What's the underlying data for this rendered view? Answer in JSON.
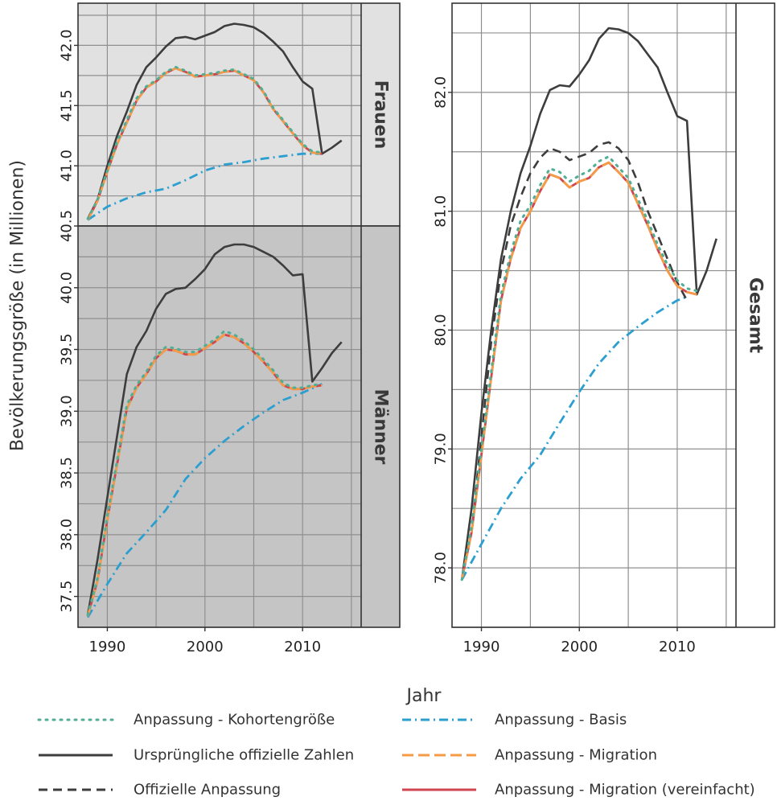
{
  "chart_data": {
    "type": "line",
    "xlabel": "Jahr",
    "ylabel": "Bevölkerungsgröße (in Millionen)",
    "xlim": [
      1987,
      2016
    ],
    "xticks": [
      "1990",
      "2000",
      "2010"
    ],
    "series_styles": [
      {
        "key": "kohort",
        "name": "Anpassung - Kohortengröße",
        "color": "#4fae93",
        "dash": "2 7"
      },
      {
        "key": "orig",
        "name": "Ursprüngliche offizielle Zahlen",
        "color": "#3d3d3d",
        "dash": ""
      },
      {
        "key": "offanp",
        "name": "Offizielle Anpassung",
        "color": "#3d3d3d",
        "dash": "11 7"
      },
      {
        "key": "basis",
        "name": "Anpassung - Basis",
        "color": "#2b9fd0",
        "dash": "11 5 2 5"
      },
      {
        "key": "migr",
        "name": "Anpassung - Migration",
        "color": "#f59b47",
        "dash": "14 6"
      },
      {
        "key": "migrv",
        "name": "Anpassung - Migration (vereinfacht)",
        "color": "#cf4550",
        "dash": ""
      }
    ],
    "legend": [
      [
        "Anpassung - Kohortengröße",
        "Anpassung - Basis"
      ],
      [
        "Ursprüngliche offizielle Zahlen",
        "Anpassung - Migration"
      ],
      [
        "Offizielle Anpassung",
        "Anpassung - Migration (vereinfacht)"
      ]
    ],
    "panels": [
      {
        "strip": "Frauen",
        "ylim": [
          40.5,
          42.35
        ],
        "yticks": [
          "40.5",
          "41.0",
          "41.5",
          "42.0"
        ],
        "series": {
          "orig": {
            "x": [
              1988,
              1989,
              1990,
              1991,
              1992,
              1993,
              1994,
              1995,
              1996,
              1997,
              1998,
              1999,
              2000,
              2001,
              2002,
              2003,
              2004,
              2005,
              2006,
              2007,
              2008,
              2009,
              2010,
              2011,
              2012,
              2013,
              2014
            ],
            "y": [
              40.56,
              40.72,
              41.0,
              41.25,
              41.45,
              41.67,
              41.82,
              41.9,
              41.99,
              42.06,
              42.07,
              42.05,
              42.08,
              42.11,
              42.16,
              42.18,
              42.17,
              42.15,
              42.1,
              42.03,
              41.95,
              41.82,
              41.7,
              41.64,
              41.1,
              41.15,
              41.21
            ]
          },
          "kohort": {
            "x": [
              1988,
              1989,
              1990,
              1991,
              1992,
              1993,
              1994,
              1995,
              1996,
              1997,
              1998,
              1999,
              2000,
              2001,
              2002,
              2003,
              2004,
              2005,
              2006,
              2007,
              2008,
              2009,
              2010,
              2011,
              2012
            ],
            "y": [
              40.56,
              40.72,
              40.96,
              41.2,
              41.38,
              41.56,
              41.66,
              41.71,
              41.78,
              41.82,
              41.79,
              41.75,
              41.76,
              41.77,
              41.79,
              41.8,
              41.76,
              41.72,
              41.62,
              41.48,
              41.38,
              41.28,
              41.18,
              41.12,
              41.11
            ]
          },
          "migr": {
            "x": [
              1988,
              1989,
              1990,
              1991,
              1992,
              1993,
              1994,
              1995,
              1996,
              1997,
              1998,
              1999,
              2000,
              2001,
              2002,
              2003,
              2004,
              2005,
              2006,
              2007,
              2008,
              2009,
              2010,
              2011,
              2012
            ],
            "y": [
              40.55,
              40.71,
              40.95,
              41.18,
              41.36,
              41.54,
              41.65,
              41.7,
              41.77,
              41.81,
              41.78,
              41.74,
              41.75,
              41.76,
              41.78,
              41.79,
              41.75,
              41.71,
              41.61,
              41.47,
              41.37,
              41.27,
              41.17,
              41.11,
              41.1
            ]
          },
          "migrv": {
            "x": [
              1988,
              1989,
              1990,
              1991,
              1992,
              1993,
              1994,
              1995,
              1996,
              1997,
              1998,
              1999,
              2000,
              2001,
              2002,
              2003,
              2004,
              2005,
              2006,
              2007,
              2008,
              2009,
              2010,
              2011,
              2012
            ],
            "y": [
              40.55,
              40.71,
              40.95,
              41.18,
              41.36,
              41.54,
              41.65,
              41.7,
              41.77,
              41.81,
              41.78,
              41.74,
              41.75,
              41.76,
              41.78,
              41.79,
              41.75,
              41.71,
              41.61,
              41.47,
              41.37,
              41.27,
              41.17,
              41.11,
              41.1
            ]
          },
          "basis": {
            "x": [
              1988,
              1990,
              1992,
              1994,
              1996,
              1998,
              2000,
              2002,
              2004,
              2006,
              2008,
              2010,
              2012
            ],
            "y": [
              40.55,
              40.66,
              40.73,
              40.78,
              40.81,
              40.88,
              40.96,
              41.01,
              41.03,
              41.06,
              41.08,
              41.1,
              41.1
            ]
          }
        }
      },
      {
        "strip": "Männer",
        "ylim": [
          37.25,
          40.5
        ],
        "yticks": [
          "37.5",
          "38.0",
          "38.5",
          "39.0",
          "39.5",
          "40.0"
        ],
        "series": {
          "orig": {
            "x": [
              1988,
              1989,
              1990,
              1991,
              1992,
              1993,
              1994,
              1995,
              1996,
              1997,
              1998,
              1999,
              2000,
              2001,
              2002,
              2003,
              2004,
              2005,
              2006,
              2007,
              2008,
              2009,
              2010,
              2011,
              2012,
              2013,
              2014
            ],
            "y": [
              37.35,
              37.8,
              38.3,
              38.8,
              39.3,
              39.52,
              39.65,
              39.83,
              39.95,
              39.99,
              40.0,
              40.07,
              40.15,
              40.27,
              40.33,
              40.35,
              40.35,
              40.33,
              40.29,
              40.25,
              40.18,
              40.1,
              40.11,
              39.24,
              39.35,
              39.47,
              39.56
            ]
          },
          "kohort": {
            "x": [
              1988,
              1989,
              1990,
              1991,
              1992,
              1993,
              1994,
              1995,
              1996,
              1997,
              1998,
              1999,
              2000,
              2001,
              2002,
              2003,
              2004,
              2005,
              2006,
              2007,
              2008,
              2009,
              2010,
              2011,
              2012
            ],
            "y": [
              37.35,
              37.65,
              38.15,
              38.6,
              39.05,
              39.21,
              39.32,
              39.45,
              39.52,
              39.51,
              39.48,
              39.48,
              39.53,
              39.58,
              39.65,
              39.62,
              39.57,
              39.5,
              39.42,
              39.33,
              39.23,
              39.19,
              39.19,
              39.21,
              39.22
            ]
          },
          "migr": {
            "x": [
              1988,
              1989,
              1990,
              1991,
              1992,
              1993,
              1994,
              1995,
              1996,
              1997,
              1998,
              1999,
              2000,
              2001,
              2002,
              2003,
              2004,
              2005,
              2006,
              2007,
              2008,
              2009,
              2010,
              2011,
              2012
            ],
            "y": [
              37.34,
              37.63,
              38.12,
              38.57,
              39.02,
              39.19,
              39.3,
              39.43,
              39.5,
              39.49,
              39.46,
              39.46,
              39.51,
              39.56,
              39.62,
              39.6,
              39.55,
              39.48,
              39.4,
              39.31,
              39.21,
              39.18,
              39.18,
              39.2,
              39.21
            ]
          },
          "migrv": {
            "x": [
              1988,
              1989,
              1990,
              1991,
              1992,
              1993,
              1994,
              1995,
              1996,
              1997,
              1998,
              1999,
              2000,
              2001,
              2002,
              2003,
              2004,
              2005,
              2006,
              2007,
              2008,
              2009,
              2010,
              2011,
              2012
            ],
            "y": [
              37.34,
              37.63,
              38.12,
              38.57,
              39.02,
              39.19,
              39.3,
              39.43,
              39.5,
              39.49,
              39.46,
              39.46,
              39.51,
              39.56,
              39.62,
              39.6,
              39.55,
              39.48,
              39.4,
              39.31,
              39.21,
              39.18,
              39.18,
              39.2,
              39.21
            ]
          },
          "basis": {
            "x": [
              1988,
              1990,
              1992,
              1994,
              1996,
              1998,
              2000,
              2002,
              2004,
              2006,
              2008,
              2010,
              2012
            ],
            "y": [
              37.33,
              37.6,
              37.85,
              38.02,
              38.2,
              38.45,
              38.62,
              38.76,
              38.88,
              38.99,
              39.09,
              39.15,
              39.22
            ]
          }
        }
      },
      {
        "strip": "Gesamt",
        "ylim": [
          77.5,
          82.75
        ],
        "yticks": [
          "78.0",
          "79.0",
          "80.0",
          "81.0",
          "82.0"
        ],
        "series": {
          "orig": {
            "x": [
              1988,
              1989,
              1990,
              1991,
              1992,
              1993,
              1994,
              1995,
              1996,
              1997,
              1998,
              1999,
              2000,
              2001,
              2002,
              2003,
              2004,
              2005,
              2006,
              2007,
              2008,
              2009,
              2010,
              2011,
              2012,
              2013,
              2014
            ],
            "y": [
              77.9,
              78.5,
              79.3,
              80.0,
              80.6,
              81.0,
              81.32,
              81.55,
              81.82,
              82.02,
              82.06,
              82.05,
              82.15,
              82.27,
              82.45,
              82.54,
              82.53,
              82.5,
              82.43,
              82.32,
              82.21,
              82.0,
              81.8,
              81.76,
              80.3,
              80.5,
              80.77
            ]
          },
          "offanp": {
            "x": [
              1988,
              1989,
              1990,
              1991,
              1992,
              1993,
              1994,
              1995,
              1996,
              1997,
              1998,
              1999,
              2000,
              2001,
              2002,
              2003,
              2004,
              2005,
              2006,
              2007,
              2008,
              2009,
              2010,
              2011
            ],
            "y": [
              77.9,
              78.3,
              79.1,
              79.9,
              80.5,
              80.88,
              81.12,
              81.32,
              81.45,
              81.53,
              81.5,
              81.43,
              81.46,
              81.49,
              81.56,
              81.58,
              81.53,
              81.43,
              81.24,
              81.0,
              80.8,
              80.6,
              80.4,
              80.25
            ]
          },
          "kohort": {
            "x": [
              1988,
              1989,
              1990,
              1991,
              1992,
              1993,
              1994,
              1995,
              1996,
              1997,
              1998,
              1999,
              2000,
              2001,
              2002,
              2003,
              2004,
              2005,
              2006,
              2007,
              2008,
              2009,
              2010,
              2011,
              2012
            ],
            "y": [
              77.9,
              78.35,
              79.0,
              79.65,
              80.3,
              80.65,
              80.92,
              81.05,
              81.22,
              81.36,
              81.33,
              81.25,
              81.3,
              81.34,
              81.42,
              81.46,
              81.37,
              81.28,
              81.1,
              80.92,
              80.72,
              80.55,
              80.42,
              80.35,
              80.33
            ]
          },
          "migr": {
            "x": [
              1988,
              1989,
              1990,
              1991,
              1992,
              1993,
              1994,
              1995,
              1996,
              1997,
              1998,
              1999,
              2000,
              2001,
              2002,
              2003,
              2004,
              2005,
              2006,
              2007,
              2008,
              2009,
              2010,
              2011,
              2012
            ],
            "y": [
              77.9,
              78.3,
              78.95,
              79.6,
              80.25,
              80.6,
              80.86,
              81.0,
              81.17,
              81.31,
              81.28,
              81.2,
              81.25,
              81.28,
              81.37,
              81.41,
              81.33,
              81.24,
              81.06,
              80.88,
              80.68,
              80.5,
              80.37,
              80.32,
              80.3
            ]
          },
          "migrv": {
            "x": [
              1988,
              1989,
              1990,
              1991,
              1992,
              1993,
              1994,
              1995,
              1996,
              1997,
              1998,
              1999,
              2000,
              2001,
              2002,
              2003,
              2004,
              2005,
              2006,
              2007,
              2008,
              2009,
              2010,
              2011,
              2012
            ],
            "y": [
              77.9,
              78.3,
              78.95,
              79.6,
              80.25,
              80.6,
              80.86,
              81.0,
              81.17,
              81.31,
              81.28,
              81.2,
              81.25,
              81.28,
              81.37,
              81.41,
              81.33,
              81.24,
              81.06,
              80.88,
              80.68,
              80.5,
              80.37,
              80.32,
              80.3
            ]
          },
          "basis": {
            "x": [
              1988,
              1990,
              1992,
              1994,
              1996,
              1998,
              2000,
              2002,
              2004,
              2006,
              2008,
              2010,
              2011
            ],
            "y": [
              77.9,
              78.2,
              78.5,
              78.75,
              78.95,
              79.22,
              79.48,
              79.72,
              79.9,
              80.03,
              80.15,
              80.25,
              80.28
            ]
          }
        }
      }
    ]
  }
}
